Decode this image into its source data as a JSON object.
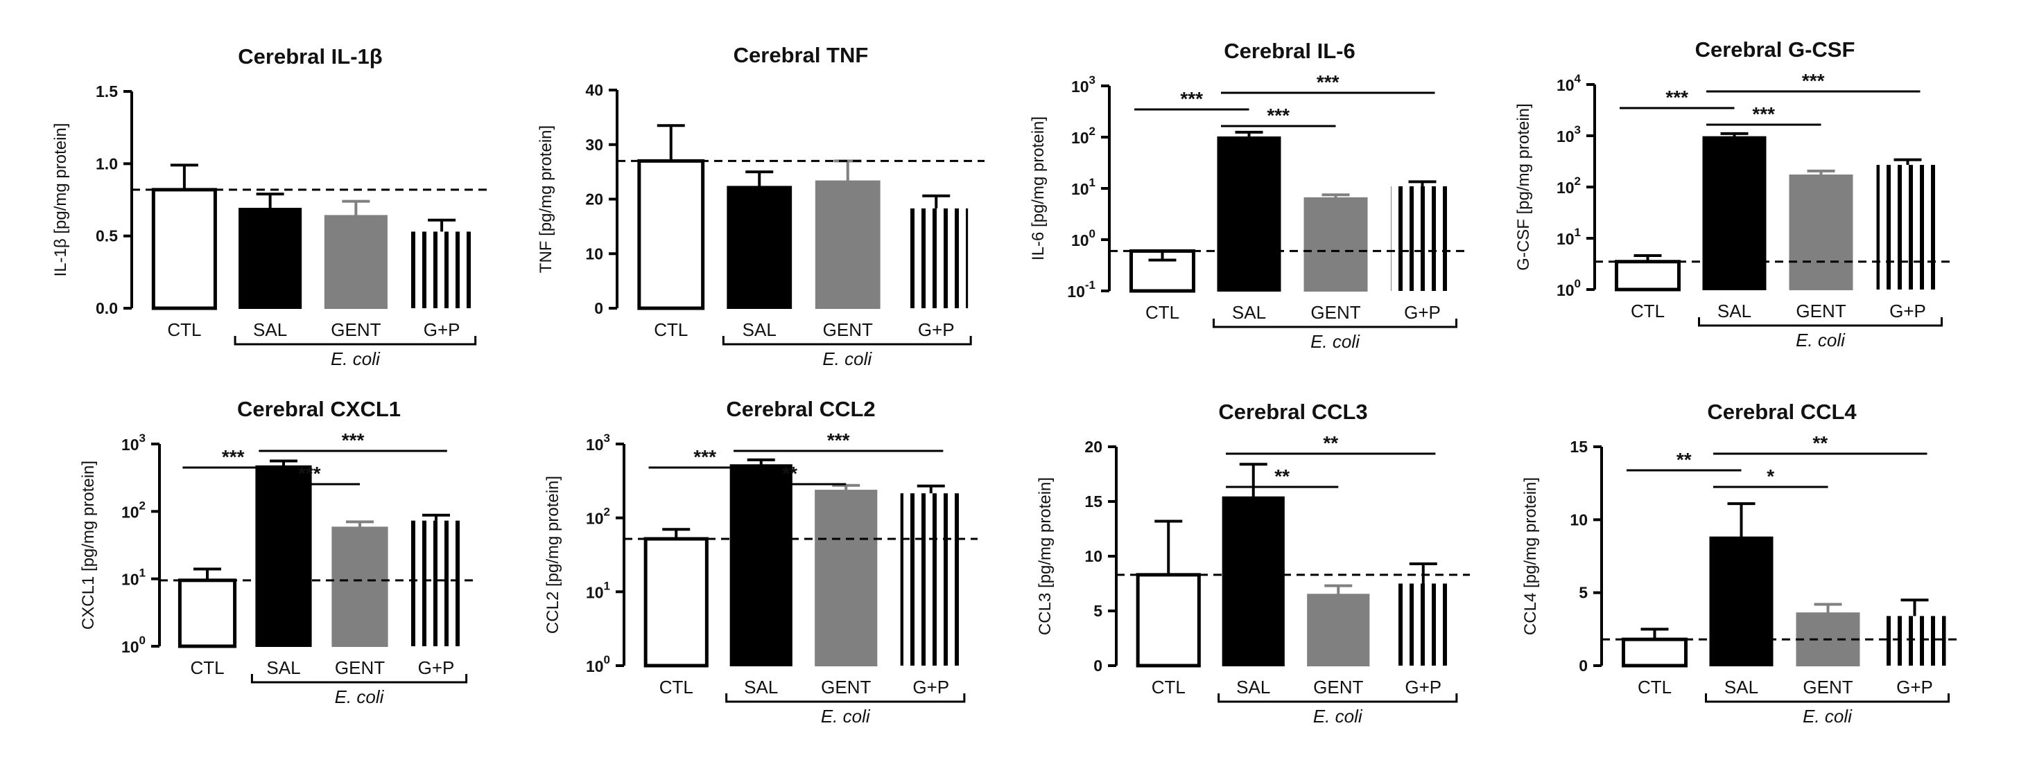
{
  "colors": {
    "sal": "#000000",
    "gent": "#808080",
    "ctl": "#ffffff",
    "gp": "stripes-black"
  },
  "chart_data": [
    {
      "type": "bar",
      "title": "Cerebral IL-1β",
      "ylabel": "IL-1β [pg/mg protein]",
      "scale": "linear",
      "ylim": [
        0,
        1.5
      ],
      "yticks": [
        "0.0",
        "0.5",
        "1.0",
        "1.5"
      ],
      "categories": [
        "CTL",
        "SAL",
        "GENT",
        "G+P"
      ],
      "group_label": "E. coli",
      "values": [
        0.82,
        0.69,
        0.64,
        0.53
      ],
      "errors": [
        0.99,
        0.79,
        0.74,
        0.61
      ],
      "reference_line": 0.82,
      "significance": []
    },
    {
      "type": "bar",
      "title": "Cerebral TNF",
      "ylabel": "TNF [pg/mg protein]",
      "scale": "linear",
      "ylim": [
        0,
        40
      ],
      "yticks": [
        "0",
        "10",
        "20",
        "30",
        "40"
      ],
      "categories": [
        "CTL",
        "SAL",
        "GENT",
        "G+P"
      ],
      "group_label": "E. coli",
      "values": [
        27,
        22.3,
        23.3,
        18.3
      ],
      "errors": [
        33.5,
        25,
        27,
        20.6
      ],
      "reference_line": 27,
      "significance": []
    },
    {
      "type": "bar",
      "title": "Cerebral IL-6",
      "ylabel": "IL-6 [pg/mg protein]",
      "scale": "log",
      "ylim": [
        0.1,
        1000
      ],
      "yticks": [
        {
          "b": "10",
          "e": "-1"
        },
        {
          "b": "10",
          "e": "0"
        },
        {
          "b": "10",
          "e": "1"
        },
        {
          "b": "10",
          "e": "2"
        },
        {
          "b": "10",
          "e": "3"
        }
      ],
      "categories": [
        "CTL",
        "SAL",
        "GENT",
        "G+P"
      ],
      "group_label": "E. coli",
      "values": [
        0.6,
        100,
        6.5,
        11
      ],
      "errors": [
        0.4,
        125,
        7.5,
        13.5
      ],
      "reference_line": 0.6,
      "significance": [
        {
          "from": 0,
          "to": 1,
          "label": "***",
          "level": 1
        },
        {
          "from": 1,
          "to": 2,
          "label": "***",
          "level": 0
        },
        {
          "from": 1,
          "to": 3,
          "label": "***",
          "level": 2
        }
      ]
    },
    {
      "type": "bar",
      "title": "Cerebral G-CSF",
      "ylabel": "G-CSF [pg/mg protein]",
      "scale": "log",
      "ylim": [
        1,
        10000
      ],
      "yticks": [
        {
          "b": "10",
          "e": "0"
        },
        {
          "b": "10",
          "e": "1"
        },
        {
          "b": "10",
          "e": "2"
        },
        {
          "b": "10",
          "e": "3"
        },
        {
          "b": "10",
          "e": "4"
        }
      ],
      "categories": [
        "CTL",
        "SAL",
        "GENT",
        "G+P"
      ],
      "group_label": "E. coli",
      "values": [
        3.5,
        950,
        170,
        270
      ],
      "errors": [
        4.6,
        1100,
        205,
        340
      ],
      "reference_line": 3.5,
      "significance": [
        {
          "from": 0,
          "to": 1,
          "label": "***",
          "level": 1
        },
        {
          "from": 1,
          "to": 2,
          "label": "***",
          "level": 0
        },
        {
          "from": 1,
          "to": 3,
          "label": "***",
          "level": 2
        }
      ]
    },
    {
      "type": "bar",
      "title": "Cerebral CXCL1",
      "ylabel": "CXCL1 [pg/mg protein]",
      "scale": "log",
      "ylim": [
        1,
        1000
      ],
      "yticks": [
        {
          "b": "10",
          "e": "0"
        },
        {
          "b": "10",
          "e": "1"
        },
        {
          "b": "10",
          "e": "2"
        },
        {
          "b": "10",
          "e": "3"
        }
      ],
      "categories": [
        "CTL",
        "SAL",
        "GENT",
        "G+P"
      ],
      "group_label": "E. coli",
      "values": [
        9.5,
        470,
        58,
        73
      ],
      "errors": [
        14,
        560,
        70,
        88
      ],
      "reference_line": 9.5,
      "significance": [
        {
          "from": 0,
          "to": 1,
          "label": "***",
          "level": 1
        },
        {
          "from": 1,
          "to": 2,
          "label": "***",
          "level": 0
        },
        {
          "from": 1,
          "to": 3,
          "label": "***",
          "level": 2
        }
      ]
    },
    {
      "type": "bar",
      "title": "Cerebral CCL2",
      "ylabel": "CCL2 [pg/mg protein]",
      "scale": "log",
      "ylim": [
        1,
        1000
      ],
      "yticks": [
        {
          "b": "10",
          "e": "0"
        },
        {
          "b": "10",
          "e": "1"
        },
        {
          "b": "10",
          "e": "2"
        },
        {
          "b": "10",
          "e": "3"
        }
      ],
      "categories": [
        "CTL",
        "SAL",
        "GENT",
        "G+P"
      ],
      "group_label": "E. coli",
      "values": [
        52,
        520,
        235,
        215
      ],
      "errors": [
        70,
        610,
        275,
        270
      ],
      "reference_line": 52,
      "significance": [
        {
          "from": 0,
          "to": 1,
          "label": "***",
          "level": 1
        },
        {
          "from": 1,
          "to": 2,
          "label": "**",
          "level": 0
        },
        {
          "from": 1,
          "to": 3,
          "label": "***",
          "level": 2
        }
      ]
    },
    {
      "type": "bar",
      "title": "Cerebral CCL3",
      "ylabel": "CCL3 [pg/mg protein]",
      "scale": "linear",
      "ylim": [
        0,
        20
      ],
      "yticks": [
        "0",
        "5",
        "10",
        "15",
        "20"
      ],
      "categories": [
        "CTL",
        "SAL",
        "GENT",
        "G+P"
      ],
      "group_label": "E. coli",
      "values": [
        8.3,
        15.4,
        6.5,
        7.5
      ],
      "errors": [
        13.2,
        18.4,
        7.3,
        9.3
      ],
      "reference_line": 8.3,
      "significance": [
        {
          "from": 1,
          "to": 2,
          "label": "**",
          "level": 0
        },
        {
          "from": 1,
          "to": 3,
          "label": "**",
          "level": 2
        }
      ]
    },
    {
      "type": "bar",
      "title": "Cerebral CCL4",
      "ylabel": "CCL4 [pg/mg protein]",
      "scale": "linear",
      "ylim": [
        0,
        15
      ],
      "yticks": [
        "0",
        "5",
        "10",
        "15"
      ],
      "categories": [
        "CTL",
        "SAL",
        "GENT",
        "G+P"
      ],
      "group_label": "E. coli",
      "values": [
        1.8,
        8.8,
        3.6,
        3.4
      ],
      "errors": [
        2.5,
        11.1,
        4.2,
        4.5
      ],
      "reference_line": 1.8,
      "significance": [
        {
          "from": 0,
          "to": 1,
          "label": "**",
          "level": 1
        },
        {
          "from": 1,
          "to": 2,
          "label": "*",
          "level": 0
        },
        {
          "from": 1,
          "to": 3,
          "label": "**",
          "level": 2
        }
      ]
    }
  ]
}
